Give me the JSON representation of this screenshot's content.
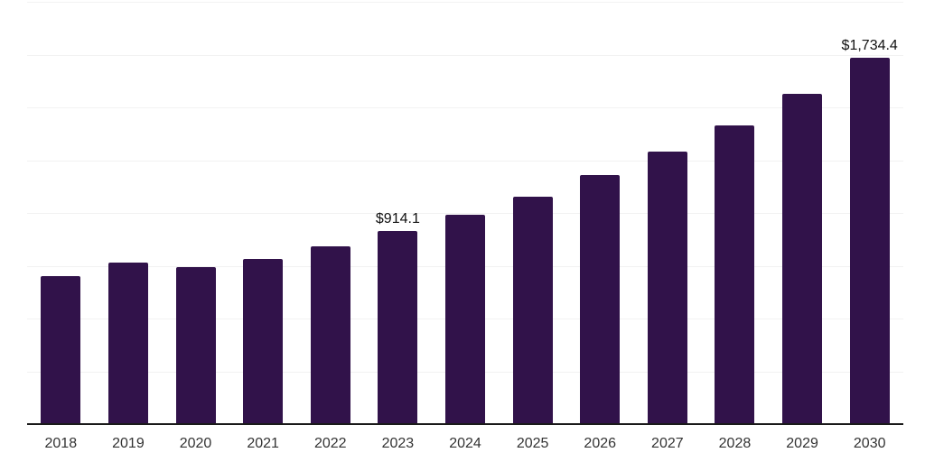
{
  "chart_data": {
    "type": "bar",
    "title": "",
    "xlabel": "",
    "ylabel": "",
    "categories": [
      "2018",
      "2019",
      "2020",
      "2021",
      "2022",
      "2023",
      "2024",
      "2025",
      "2026",
      "2027",
      "2028",
      "2029",
      "2030"
    ],
    "values": [
      699,
      767,
      742,
      784,
      844,
      914.1,
      993,
      1079,
      1181,
      1292,
      1415,
      1564,
      1734.4
    ],
    "data_labels": [
      null,
      null,
      null,
      null,
      null,
      "$914.1",
      null,
      null,
      null,
      null,
      null,
      null,
      "$1,734.4"
    ],
    "ylim": [
      0,
      2000
    ],
    "gridline_step": 250,
    "grid": true,
    "legend": "none",
    "y_axis_labels": "none",
    "colors": {
      "bar": "#31124a",
      "gridline": "#f2f2f2",
      "axis_line": "#1a1a1a",
      "tick_label": "#333333",
      "value_label": "#111111",
      "background": "#ffffff"
    }
  }
}
